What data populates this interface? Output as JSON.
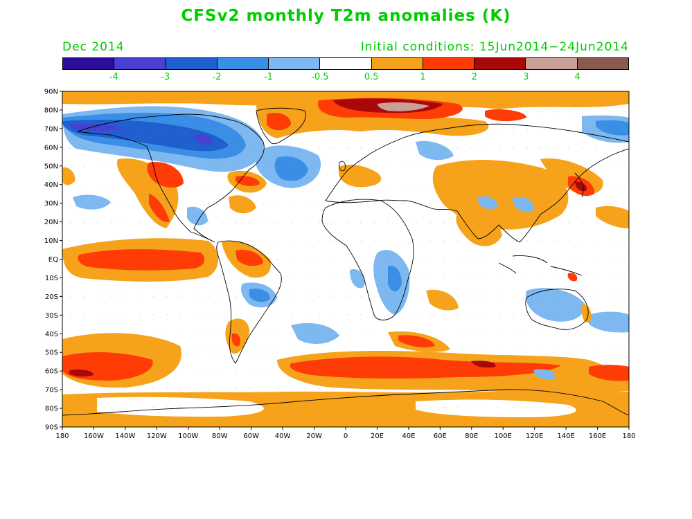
{
  "title": "CFSv2 monthly T2m anomalies (K)",
  "valid_month": "Dec 2014",
  "initial_conditions": "Initial conditions: 15Jun2014−24Jun2014",
  "colorbar": {
    "colors": [
      "#2b0f9a",
      "#4a3fd0",
      "#1f5fcf",
      "#3b8ee6",
      "#7db8f0",
      "#ffffff",
      "#f6a21a",
      "#ff3b06",
      "#a80808",
      "#c8a096",
      "#8a5a4e"
    ],
    "labels": [
      "-4",
      "-3",
      "-2",
      "-1",
      "-0.5",
      "0.5",
      "1",
      "2",
      "3",
      "4"
    ]
  },
  "axes": {
    "lat_labels": [
      "90N",
      "80N",
      "70N",
      "60N",
      "50N",
      "40N",
      "30N",
      "20N",
      "10N",
      "EQ",
      "10S",
      "20S",
      "30S",
      "40S",
      "50S",
      "60S",
      "70S",
      "80S",
      "90S"
    ],
    "lon_labels": [
      "180",
      "160W",
      "140W",
      "120W",
      "100W",
      "80W",
      "60W",
      "40W",
      "20W",
      "0",
      "20E",
      "40E",
      "60E",
      "80E",
      "100E",
      "120E",
      "140E",
      "160E",
      "180"
    ]
  },
  "colors": {
    "text_green": "#00cc00",
    "warm1": "#f6a21a",
    "warm2": "#ff3b06",
    "warm3": "#a80808",
    "warm4": "#c8a096",
    "cold1": "#7db8f0",
    "cold2": "#3b8ee6",
    "cold3": "#1f5fcf",
    "cold4": "#4a3fd0"
  }
}
